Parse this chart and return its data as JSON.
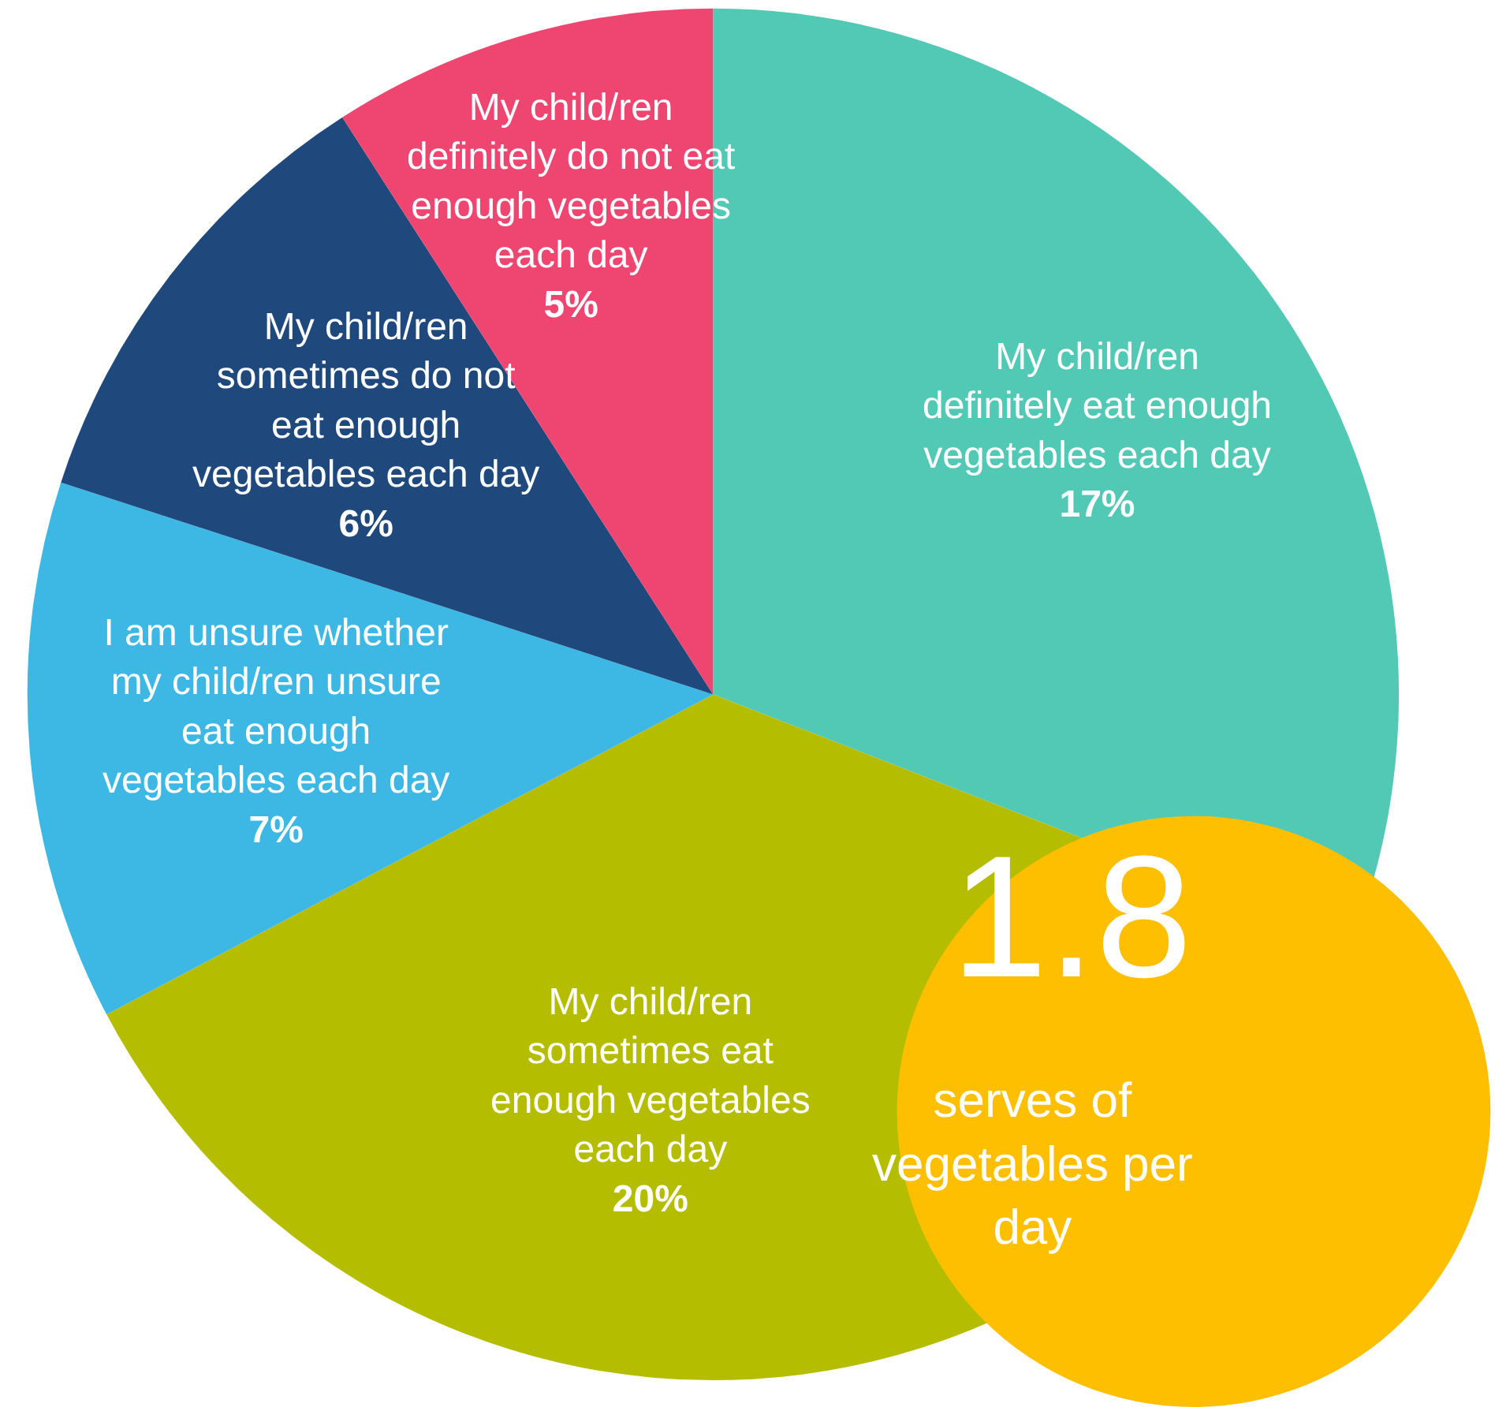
{
  "chart_data": {
    "type": "pie",
    "categories": [
      "My child/ren definitely eat enough vegetables each day",
      "My child/ren sometimes eat enough vegetables each day",
      "I am unsure whether my child/ren unsure eat enough vegetables each day",
      "My child/ren sometimes do not eat enough vegetables each day",
      "My child/ren definitely do not eat enough vegetables each day"
    ],
    "values": [
      17,
      20,
      7,
      6,
      5
    ],
    "value_labels": [
      "17%",
      "20%",
      "7%",
      "6%",
      "5%"
    ],
    "colors": [
      "#52c9b4",
      "#b5bd00",
      "#3db8e4",
      "#1f487c",
      "#ee4671"
    ],
    "annotations": [
      "1.8",
      "serves of vegetables per day"
    ],
    "legend": false
  }
}
